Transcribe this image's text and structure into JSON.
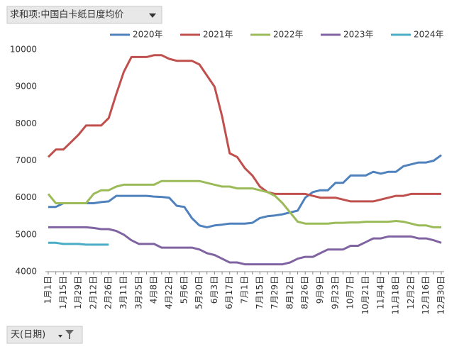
{
  "pivot_buttons": {
    "value_field": "求和项:中国白卡纸日度均价",
    "axis_field": "天(日期)"
  },
  "chart_data": {
    "type": "line",
    "categories": [
      "1月1日",
      null,
      "1月15日",
      null,
      "1月29日",
      null,
      "2月12日",
      null,
      "2月26日",
      null,
      "3月11日",
      null,
      "3月25日",
      null,
      "4月8日",
      null,
      "4月22日",
      null,
      "5月6日",
      null,
      "5月20日",
      null,
      "6月3日",
      null,
      "6月17日",
      null,
      "7月1日",
      null,
      "7月15日",
      null,
      "7月29日",
      null,
      "8月12日",
      null,
      "8月26日",
      null,
      "9月9日",
      null,
      "9月23日",
      null,
      "10月7日",
      null,
      "10月21日",
      null,
      "11月4日",
      null,
      "11月18日",
      null,
      "12月2日",
      null,
      "12月16日",
      null,
      "12月30日"
    ],
    "series": [
      {
        "name": "2020年",
        "color": "#4f81bd",
        "values": [
          5750,
          5750,
          5850,
          5850,
          5850,
          5850,
          5850,
          5880,
          5900,
          6050,
          6050,
          6050,
          6050,
          6050,
          6030,
          6020,
          6000,
          5780,
          5750,
          5450,
          5250,
          5200,
          5250,
          5270,
          5300,
          5300,
          5300,
          5320,
          5450,
          5500,
          5520,
          5550,
          5600,
          5650,
          6000,
          6150,
          6200,
          6200,
          6400,
          6400,
          6600,
          6600,
          6600,
          6700,
          6650,
          6700,
          6700,
          6850,
          6900,
          6950,
          6950,
          7000,
          7150
        ]
      },
      {
        "name": "2021年",
        "color": "#c0504d",
        "values": [
          7100,
          7300,
          7300,
          7500,
          7700,
          7950,
          7950,
          7950,
          8150,
          8800,
          9400,
          9800,
          9800,
          9800,
          9850,
          9850,
          9750,
          9700,
          9700,
          9700,
          9600,
          9300,
          9000,
          8200,
          7200,
          7100,
          6800,
          6600,
          6300,
          6150,
          6100,
          6100,
          6100,
          6100,
          6100,
          6050,
          6000,
          6000,
          6000,
          5950,
          5900,
          5900,
          5900,
          5900,
          5950,
          6000,
          6050,
          6050,
          6100,
          6100,
          6100,
          6100,
          6100
        ]
      },
      {
        "name": "2022年",
        "color": "#9bbb59",
        "values": [
          6100,
          5850,
          5850,
          5850,
          5850,
          5850,
          6100,
          6200,
          6200,
          6300,
          6350,
          6350,
          6350,
          6350,
          6350,
          6450,
          6450,
          6450,
          6450,
          6450,
          6450,
          6400,
          6350,
          6300,
          6300,
          6250,
          6250,
          6250,
          6200,
          6150,
          6050,
          5850,
          5600,
          5350,
          5300,
          5300,
          5300,
          5300,
          5320,
          5320,
          5330,
          5330,
          5350,
          5350,
          5350,
          5350,
          5370,
          5350,
          5300,
          5250,
          5250,
          5200,
          5200
        ]
      },
      {
        "name": "2023年",
        "color": "#8064a2",
        "values": [
          5200,
          5200,
          5200,
          5200,
          5200,
          5200,
          5180,
          5150,
          5150,
          5100,
          5000,
          4850,
          4750,
          4750,
          4750,
          4650,
          4650,
          4650,
          4650,
          4650,
          4600,
          4500,
          4450,
          4350,
          4250,
          4250,
          4200,
          4200,
          4200,
          4200,
          4200,
          4200,
          4250,
          4350,
          4400,
          4400,
          4500,
          4600,
          4600,
          4600,
          4700,
          4700,
          4800,
          4900,
          4900,
          4950,
          4950,
          4950,
          4950,
          4900,
          4900,
          4850,
          4780
        ]
      },
      {
        "name": "2024年",
        "color": "#4bacc6",
        "values": [
          4780,
          4780,
          4750,
          4750,
          4750,
          4730,
          4730,
          4730,
          4730,
          null,
          null,
          null,
          null,
          null,
          null,
          null,
          null,
          null,
          null,
          null,
          null,
          null,
          null,
          null,
          null,
          null,
          null,
          null,
          null,
          null,
          null,
          null,
          null,
          null,
          null,
          null,
          null,
          null,
          null,
          null,
          null,
          null,
          null,
          null,
          null,
          null,
          null,
          null,
          null,
          null,
          null,
          null,
          null
        ]
      }
    ],
    "ylim": [
      4000,
      10000
    ],
    "yticks": [
      4000,
      5000,
      6000,
      7000,
      8000,
      9000,
      10000
    ],
    "grid": false,
    "legend": "top"
  }
}
